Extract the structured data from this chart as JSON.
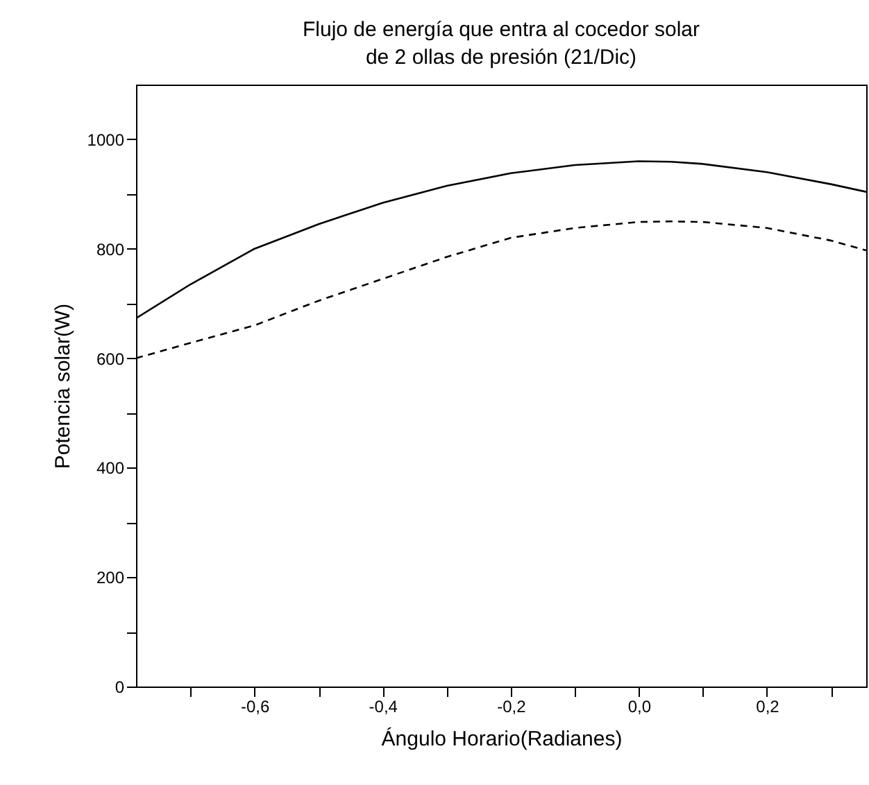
{
  "chart_data": {
    "type": "line",
    "title": "Flujo de energía que entra al cocedor solar\nde 2 ollas de presión (21/Dic)",
    "xlabel": "Ángulo Horario(Radianes)",
    "ylabel": "Potencia solar(W)",
    "xlim": [
      -0.785,
      0.355
    ],
    "ylim": [
      0,
      1100
    ],
    "xticks": [
      {
        "value": -0.7,
        "label": null
      },
      {
        "value": -0.6,
        "label": "-0,6"
      },
      {
        "value": -0.5,
        "label": null
      },
      {
        "value": -0.4,
        "label": "-0,4"
      },
      {
        "value": -0.3,
        "label": null
      },
      {
        "value": -0.2,
        "label": "-0,2"
      },
      {
        "value": -0.1,
        "label": null
      },
      {
        "value": 0,
        "label": "0,0"
      },
      {
        "value": 0.1,
        "label": null
      },
      {
        "value": 0.2,
        "label": "0,2"
      },
      {
        "value": 0.3,
        "label": null
      }
    ],
    "yticks": [
      0,
      {
        "value": 100,
        "label": null
      },
      200,
      {
        "value": 300,
        "label": null
      },
      400,
      {
        "value": 500,
        "label": null
      },
      600,
      {
        "value": 700,
        "label": null
      },
      800,
      {
        "value": 900,
        "label": null
      },
      1000
    ],
    "x": [
      -0.785,
      -0.7,
      -0.6,
      -0.5,
      -0.4,
      -0.3,
      -0.2,
      -0.1,
      0,
      0.05,
      0.1,
      0.2,
      0.3,
      0.355
    ],
    "marker": "none",
    "series": [
      {
        "color": "#000000",
        "line_style": "solid",
        "values": [
          673,
          735,
          800,
          845,
          884,
          915,
          938,
          953,
          960,
          959,
          955,
          940,
          918,
          904
        ]
      },
      {
        "color": "#000000",
        "line_style": "dashed",
        "values": [
          600,
          628,
          660,
          705,
          745,
          785,
          820,
          838,
          849,
          850,
          849,
          838,
          815,
          797
        ]
      }
    ]
  }
}
